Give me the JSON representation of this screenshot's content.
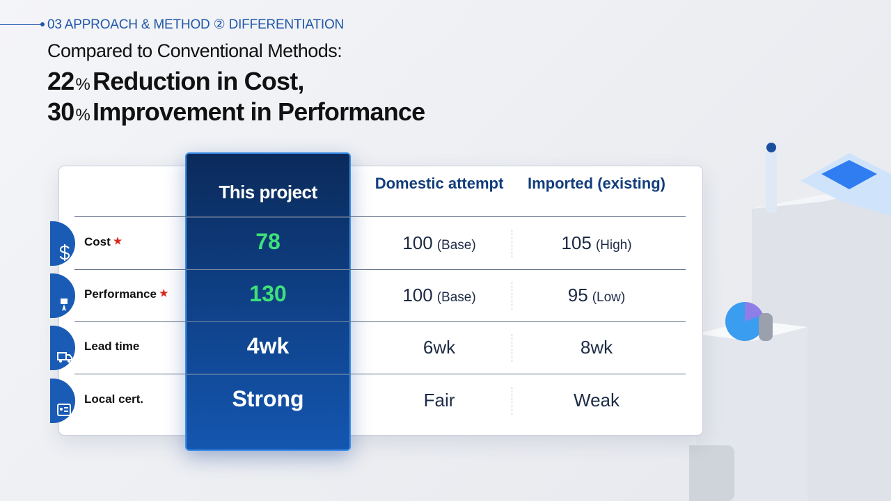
{
  "header": {
    "section": "03  APPROACH & METHOD ② DIFFERENTIATION",
    "subtitle": "Compared to Conventional Methods:",
    "headlines": [
      {
        "number": "22",
        "unit": "%",
        "text": "Reduction in Cost,"
      },
      {
        "number": "30",
        "unit": "%",
        "text": "Improvement in Performance"
      }
    ]
  },
  "table": {
    "columns": [
      "This project",
      "Domestic attempt",
      "Imported (existing)"
    ],
    "rows": [
      {
        "label": "Cost",
        "starred": true,
        "cells": [
          {
            "value": "78",
            "highlight": true
          },
          {
            "value": "100",
            "note": "(Base)"
          },
          {
            "value": "105",
            "note": "(High)"
          }
        ]
      },
      {
        "label": "Performance",
        "starred": true,
        "cells": [
          {
            "value": "130",
            "highlight": true
          },
          {
            "value": "100",
            "note": "(Base)"
          },
          {
            "value": "95",
            "note": "(Low)"
          }
        ]
      },
      {
        "label": "Lead time",
        "starred": false,
        "cells": [
          {
            "value": "4wk"
          },
          {
            "value": "6wk"
          },
          {
            "value": "8wk"
          }
        ]
      },
      {
        "label": "Local cert.",
        "starred": false,
        "cells": [
          {
            "value": "Strong"
          },
          {
            "value": "Fair"
          },
          {
            "value": "Weak"
          }
        ]
      }
    ]
  }
}
